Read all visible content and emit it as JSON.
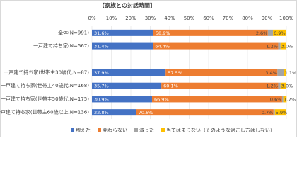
{
  "chart_data": {
    "type": "stacked-bar-horizontal",
    "title": "【家族との対話時間】",
    "categories": [
      "全体(N=991)",
      "一戸建て持ち家(N=567)",
      null,
      "一戸建て持ち家(世帯主30歳代,N=87)",
      "一戸建て持ち家(世帯主40歳代,N=168)",
      "一戸建て持ち家(世帯主50歳代,N=175)",
      "一戸建て持ち家(世帯主60歳以上,N=136)"
    ],
    "series": [
      {
        "name": "増えた",
        "color": "#4472c4",
        "label_color": "#ffffff",
        "values": [
          31.6,
          31.4,
          null,
          37.9,
          35.7,
          30.9,
          22.8
        ],
        "value_labels": [
          "31.6%",
          "31.4%",
          null,
          "37.9%",
          "35.7%",
          "30.9%",
          "22.8%"
        ]
      },
      {
        "name": "変わらない",
        "color": "#ed7d31",
        "label_color": "#ffffff",
        "values": [
          58.9,
          64.4,
          null,
          57.5,
          60.1,
          66.9,
          70.6
        ],
        "value_labels": [
          "58.9%",
          "64.4%",
          null,
          "57.5%",
          "60.1%",
          "66.9%",
          "70.6%"
        ]
      },
      {
        "name": "減った",
        "color": "#a5a5a5",
        "label_color": "#404040",
        "values": [
          2.6,
          1.2,
          null,
          3.4,
          1.2,
          0.6,
          0.7
        ],
        "value_labels": [
          "2.6%",
          "1.2%",
          null,
          "3.4%",
          "1.2%",
          "0.6%",
          "0.7%"
        ]
      },
      {
        "name": "当てはまらない（そのような過ごし方はしない）",
        "color": "#ffc000",
        "label_color": "#404040",
        "values": [
          6.9,
          3.0,
          null,
          1.1,
          3.0,
          1.7,
          5.9
        ],
        "value_labels": [
          "6.9%",
          "3.0%",
          null,
          "1.1%",
          "3.0%",
          "1.7%",
          "5.9%"
        ]
      }
    ],
    "xlim": [
      0,
      100
    ],
    "xticks": [
      {
        "value": 0,
        "label": "0%"
      },
      {
        "value": 10,
        "label": "10%"
      },
      {
        "value": 20,
        "label": "20%"
      },
      {
        "value": 30,
        "label": "30%"
      },
      {
        "value": 40,
        "label": "40%"
      },
      {
        "value": 50,
        "label": "50%"
      },
      {
        "value": 60,
        "label": "60%"
      },
      {
        "value": 70,
        "label": "70%"
      },
      {
        "value": 80,
        "label": "80%"
      },
      {
        "value": 90,
        "label": "90%"
      },
      {
        "value": 100,
        "label": "100%"
      }
    ],
    "grid": true
  }
}
